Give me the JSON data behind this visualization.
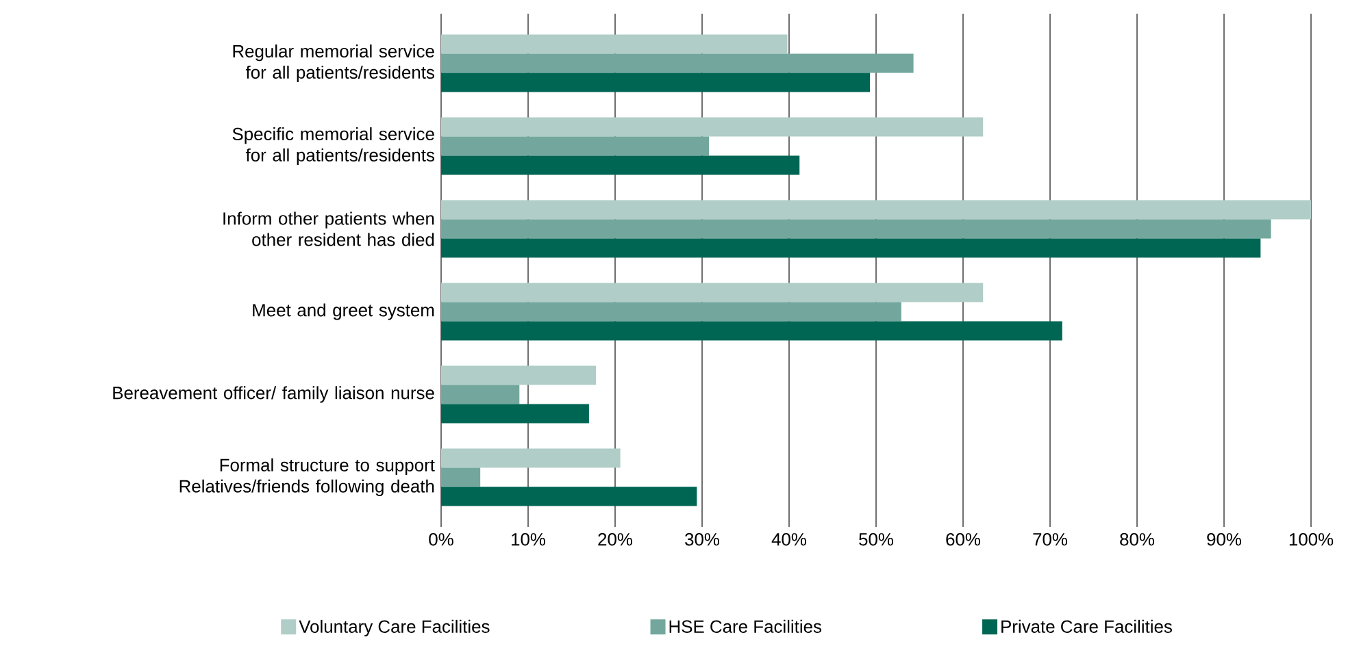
{
  "chart_data": {
    "type": "bar",
    "orientation": "horizontal",
    "categories": [
      "Regular memorial service for all patients/residents",
      "Specific memorial service for all patients/residents",
      "Inform other patients when other resident has died",
      "Meet and greet system",
      "Bereavement officer/ family liaison nurse",
      "Formal structure to support Relatives/friends following death"
    ],
    "series": [
      {
        "name": "Voluntary Care Facilities",
        "color": "#b0cdc7",
        "values": [
          39.8,
          62.3,
          100,
          62.3,
          17.8,
          20.6
        ]
      },
      {
        "name": "HSE Care Facilities",
        "color": "#73a79d",
        "values": [
          54.3,
          30.8,
          95.4,
          52.9,
          9.0,
          4.5
        ]
      },
      {
        "name": "Private Care Facilities",
        "color": "#006654",
        "values": [
          49.3,
          41.2,
          94.2,
          71.4,
          17.0,
          29.4
        ]
      }
    ],
    "xlim": [
      0,
      100
    ],
    "xticks": [
      {
        "value": 0,
        "label": "0%"
      },
      {
        "value": 10,
        "label": "10%"
      },
      {
        "value": 20,
        "label": "20%"
      },
      {
        "value": 30,
        "label": "30%"
      },
      {
        "value": 40,
        "label": "40%"
      },
      {
        "value": 50,
        "label": "50%"
      },
      {
        "value": 60,
        "label": "60%"
      },
      {
        "value": 70,
        "label": "70%"
      },
      {
        "value": 80,
        "label": "80%"
      },
      {
        "value": 90,
        "label": "90%"
      },
      {
        "value": 100,
        "label": "100%"
      }
    ],
    "grid": "x",
    "legend": "bottom"
  }
}
